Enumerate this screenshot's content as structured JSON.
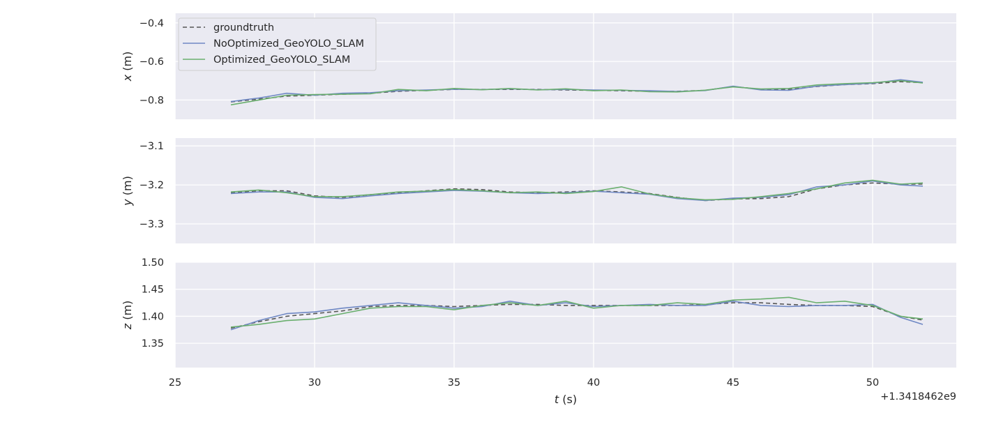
{
  "chart_data": {
    "type": "line",
    "xlabel_var": "t",
    "xlabel_unit": " (s)",
    "x_offset_text": "+1.3418462e9",
    "xlim": [
      25,
      53
    ],
    "x_ticks": [
      25,
      30,
      35,
      40,
      45,
      50
    ],
    "x_tick_labels": [
      "25",
      "30",
      "35",
      "40",
      "45",
      "50"
    ],
    "grid": true,
    "legend": {
      "placement": "upper-left",
      "entries": [
        "groundtruth",
        "NoOptimized_GeoYOLO_SLAM",
        "Optimized_GeoYOLO_SLAM"
      ]
    },
    "series_styles": [
      {
        "name": "groundtruth",
        "color": "#555555",
        "dash": "6,4"
      },
      {
        "name": "NoOptimized_GeoYOLO_SLAM",
        "color": "#6f88c4",
        "dash": ""
      },
      {
        "name": "Optimized_GeoYOLO_SLAM",
        "color": "#6aaf6e",
        "dash": ""
      }
    ],
    "panels": [
      {
        "ylabel_var": "x",
        "ylabel_unit": " (m)",
        "ylim": [
          -0.9,
          -0.35
        ],
        "y_ticks": [
          -0.4,
          -0.6,
          -0.8
        ],
        "y_tick_labels": [
          "−0.4",
          "−0.6",
          "−0.8"
        ],
        "x": [
          27,
          28,
          29,
          30,
          31,
          32,
          33,
          34,
          35,
          36,
          37,
          38,
          39,
          40,
          41,
          42,
          43,
          44,
          45,
          46,
          47,
          48,
          49,
          50,
          51,
          51.8
        ],
        "series": [
          {
            "name": "groundtruth",
            "values": [
              -0.81,
              -0.795,
              -0.78,
              -0.775,
              -0.77,
              -0.765,
              -0.755,
              -0.75,
              -0.745,
              -0.745,
              -0.745,
              -0.745,
              -0.748,
              -0.75,
              -0.752,
              -0.755,
              -0.755,
              -0.75,
              -0.73,
              -0.745,
              -0.745,
              -0.73,
              -0.72,
              -0.715,
              -0.705,
              -0.71
            ]
          },
          {
            "name": "NoOptimized_GeoYOLO_SLAM",
            "values": [
              -0.808,
              -0.79,
              -0.765,
              -0.775,
              -0.765,
              -0.762,
              -0.752,
              -0.748,
              -0.744,
              -0.746,
              -0.742,
              -0.747,
              -0.745,
              -0.748,
              -0.75,
              -0.752,
              -0.756,
              -0.751,
              -0.728,
              -0.748,
              -0.75,
              -0.728,
              -0.72,
              -0.713,
              -0.695,
              -0.708
            ]
          },
          {
            "name": "Optimized_GeoYOLO_SLAM",
            "values": [
              -0.825,
              -0.8,
              -0.775,
              -0.772,
              -0.77,
              -0.768,
              -0.745,
              -0.752,
              -0.74,
              -0.747,
              -0.74,
              -0.748,
              -0.742,
              -0.752,
              -0.748,
              -0.757,
              -0.758,
              -0.749,
              -0.732,
              -0.743,
              -0.74,
              -0.722,
              -0.715,
              -0.71,
              -0.7,
              -0.712
            ]
          }
        ]
      },
      {
        "ylabel_var": "y",
        "ylabel_unit": " (m)",
        "ylim": [
          -3.35,
          -3.08
        ],
        "y_ticks": [
          -3.1,
          -3.2,
          -3.3
        ],
        "y_tick_labels": [
          "−3.1",
          "−3.2",
          "−3.3"
        ],
        "x": [
          27,
          28,
          29,
          30,
          31,
          32,
          33,
          34,
          35,
          36,
          37,
          38,
          39,
          40,
          41,
          42,
          43,
          44,
          45,
          46,
          47,
          48,
          49,
          50,
          51,
          51.8
        ],
        "series": [
          {
            "name": "groundtruth",
            "values": [
              -3.22,
              -3.215,
              -3.215,
              -3.228,
              -3.232,
              -3.225,
              -3.22,
              -3.215,
              -3.21,
              -3.212,
              -3.218,
              -3.22,
              -3.218,
              -3.215,
              -3.218,
              -3.222,
              -3.232,
              -3.24,
              -3.236,
              -3.235,
              -3.23,
              -3.21,
              -3.2,
              -3.195,
              -3.198,
              -3.198
            ]
          },
          {
            "name": "NoOptimized_GeoYOLO_SLAM",
            "values": [
              -3.222,
              -3.218,
              -3.218,
              -3.232,
              -3.235,
              -3.228,
              -3.222,
              -3.218,
              -3.214,
              -3.216,
              -3.22,
              -3.222,
              -3.22,
              -3.216,
              -3.22,
              -3.224,
              -3.235,
              -3.24,
              -3.234,
              -3.232,
              -3.225,
              -3.205,
              -3.2,
              -3.19,
              -3.2,
              -3.203
            ]
          },
          {
            "name": "Optimized_GeoYOLO_SLAM",
            "values": [
              -3.218,
              -3.213,
              -3.22,
              -3.23,
              -3.23,
              -3.225,
              -3.218,
              -3.216,
              -3.212,
              -3.215,
              -3.22,
              -3.218,
              -3.222,
              -3.217,
              -3.205,
              -3.223,
              -3.233,
              -3.238,
              -3.237,
              -3.23,
              -3.222,
              -3.21,
              -3.195,
              -3.188,
              -3.198,
              -3.195
            ]
          }
        ]
      },
      {
        "ylabel_var": "z",
        "ylabel_unit": " (m)",
        "ylim": [
          1.305,
          1.5
        ],
        "y_ticks": [
          1.35,
          1.4,
          1.45,
          1.5
        ],
        "y_tick_labels": [
          "1.35",
          "1.40",
          "1.45",
          "1.50"
        ],
        "x": [
          27,
          28,
          29,
          30,
          31,
          32,
          33,
          34,
          35,
          36,
          37,
          38,
          39,
          40,
          41,
          42,
          43,
          44,
          45,
          46,
          47,
          48,
          49,
          50,
          51,
          51.8
        ],
        "series": [
          {
            "name": "groundtruth",
            "values": [
              1.378,
              1.39,
              1.4,
              1.405,
              1.41,
              1.418,
              1.42,
              1.42,
              1.418,
              1.42,
              1.422,
              1.422,
              1.42,
              1.42,
              1.42,
              1.42,
              1.42,
              1.422,
              1.425,
              1.425,
              1.422,
              1.42,
              1.42,
              1.418,
              1.4,
              1.393
            ]
          },
          {
            "name": "NoOptimized_GeoYOLO_SLAM",
            "values": [
              1.375,
              1.392,
              1.405,
              1.408,
              1.415,
              1.42,
              1.425,
              1.42,
              1.415,
              1.418,
              1.428,
              1.42,
              1.425,
              1.418,
              1.42,
              1.422,
              1.42,
              1.42,
              1.428,
              1.42,
              1.418,
              1.42,
              1.42,
              1.422,
              1.398,
              1.385
            ]
          },
          {
            "name": "Optimized_GeoYOLO_SLAM",
            "values": [
              1.38,
              1.385,
              1.392,
              1.395,
              1.405,
              1.415,
              1.418,
              1.418,
              1.412,
              1.42,
              1.425,
              1.42,
              1.428,
              1.415,
              1.42,
              1.42,
              1.425,
              1.422,
              1.43,
              1.432,
              1.435,
              1.425,
              1.428,
              1.42,
              1.4,
              1.395
            ]
          }
        ]
      }
    ]
  }
}
